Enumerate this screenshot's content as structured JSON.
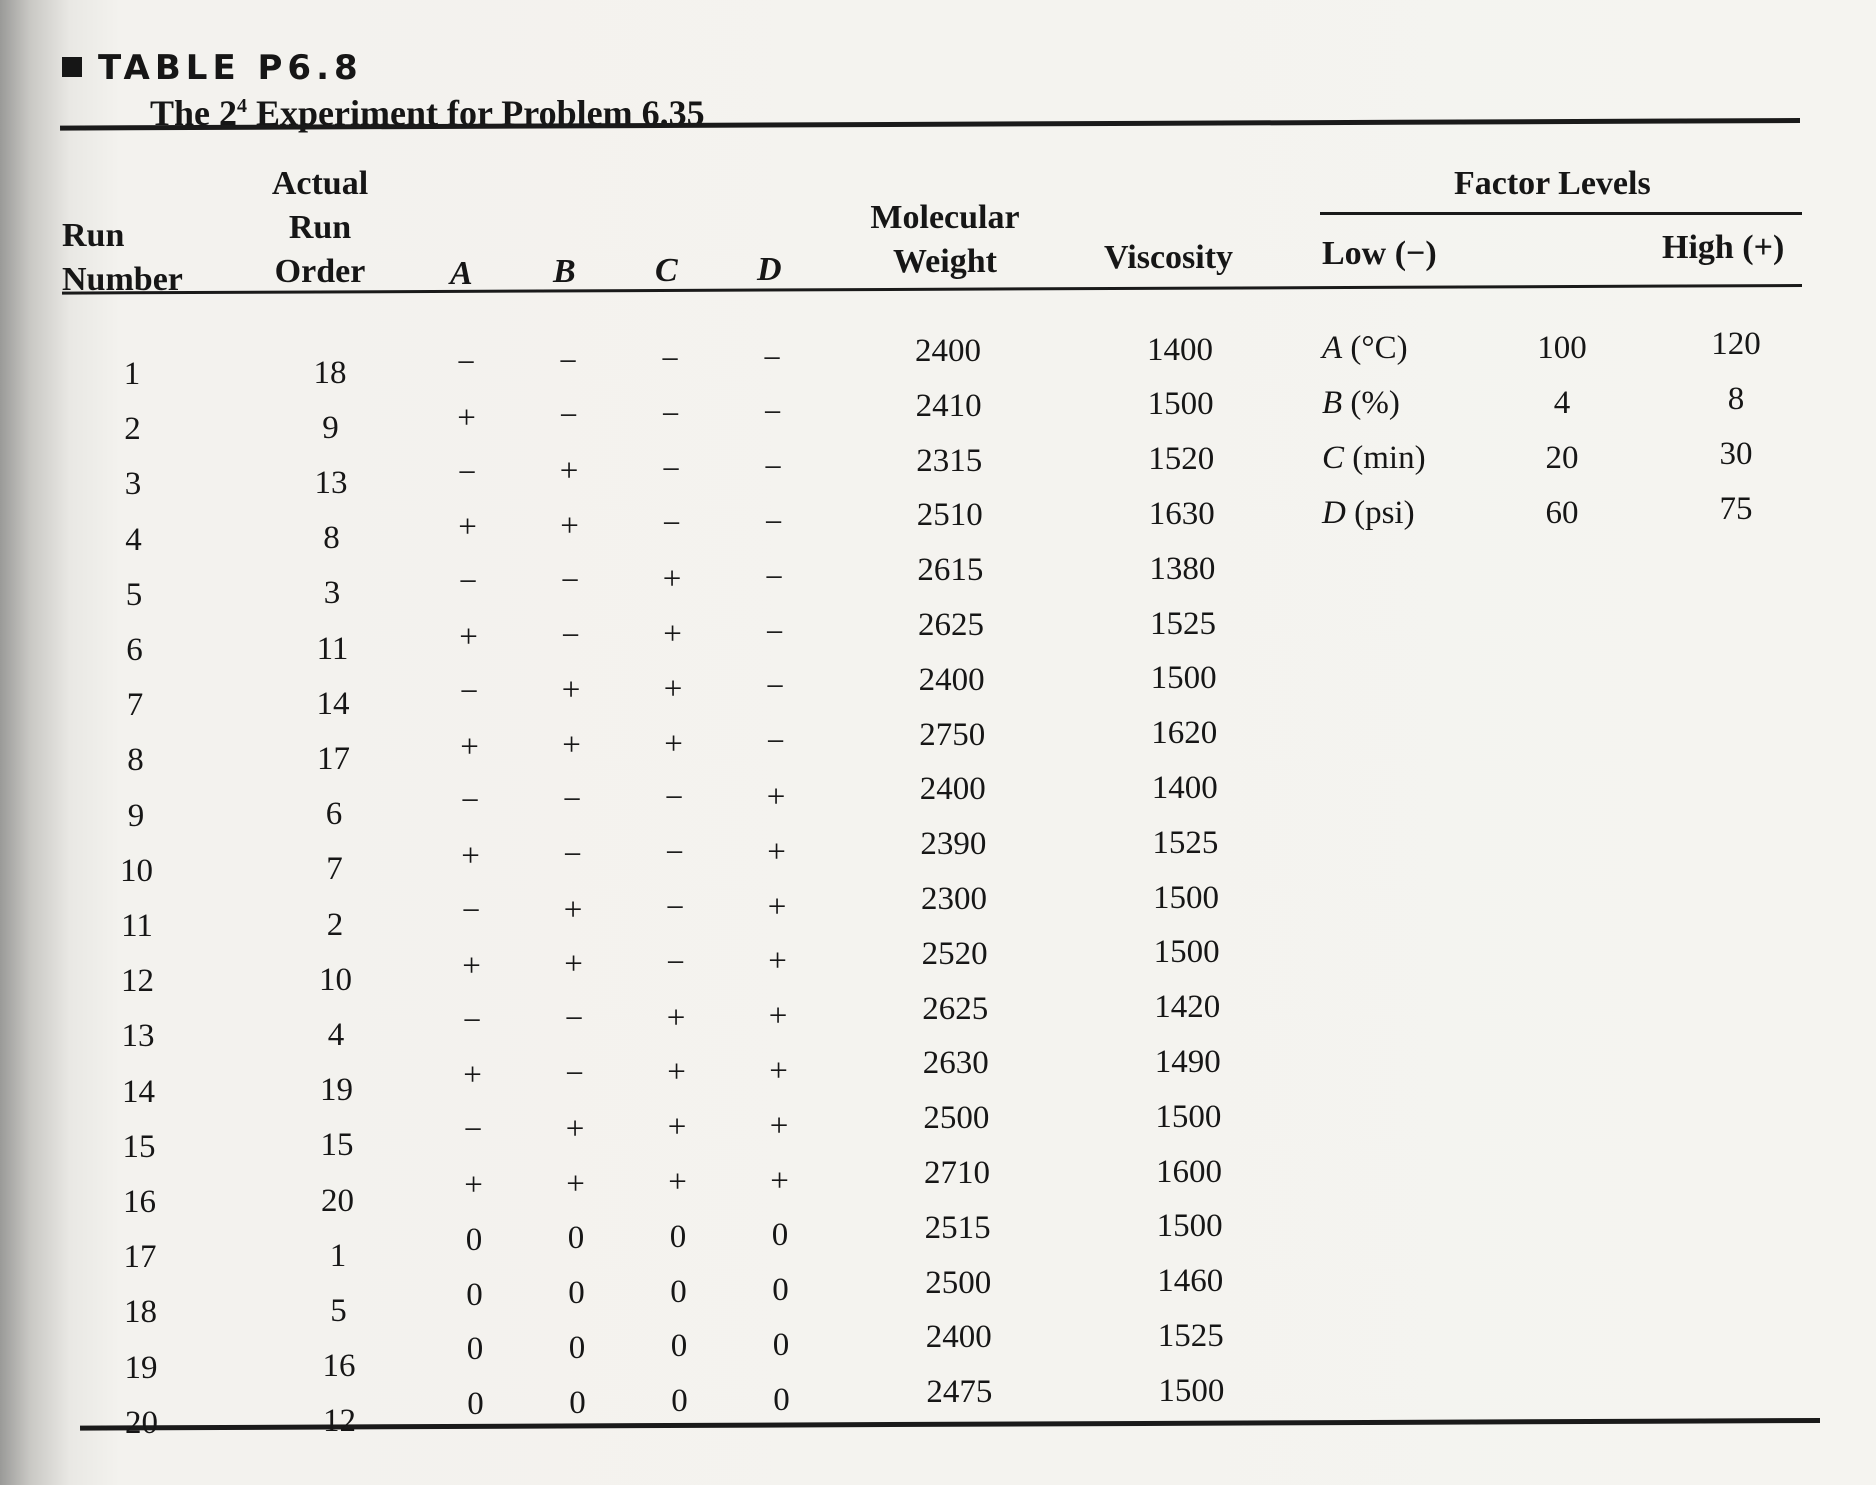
{
  "table_label": "TABLE P6.8",
  "title": {
    "prefix": "The 2",
    "superscript": "4",
    "suffix": " Experiment for Problem 6.35"
  },
  "headers": {
    "run_number": [
      "Run",
      "Number"
    ],
    "actual_run_order": [
      "Actual",
      "Run",
      "Order"
    ],
    "factors": [
      "A",
      "B",
      "C",
      "D"
    ],
    "molecular_weight": [
      "Molecular",
      "Weight"
    ],
    "viscosity": "Viscosity",
    "factor_levels": "Factor Levels",
    "low": "Low (−)",
    "high": "High (+)"
  },
  "rows": [
    {
      "run": "1",
      "order": "18",
      "A": "−",
      "B": "−",
      "C": "−",
      "D": "−",
      "mw": "2400",
      "visc": "1400"
    },
    {
      "run": "2",
      "order": "9",
      "A": "+",
      "B": "−",
      "C": "−",
      "D": "−",
      "mw": "2410",
      "visc": "1500"
    },
    {
      "run": "3",
      "order": "13",
      "A": "−",
      "B": "+",
      "C": "−",
      "D": "−",
      "mw": "2315",
      "visc": "1520"
    },
    {
      "run": "4",
      "order": "8",
      "A": "+",
      "B": "+",
      "C": "−",
      "D": "−",
      "mw": "2510",
      "visc": "1630"
    },
    {
      "run": "5",
      "order": "3",
      "A": "−",
      "B": "−",
      "C": "+",
      "D": "−",
      "mw": "2615",
      "visc": "1380"
    },
    {
      "run": "6",
      "order": "11",
      "A": "+",
      "B": "−",
      "C": "+",
      "D": "−",
      "mw": "2625",
      "visc": "1525"
    },
    {
      "run": "7",
      "order": "14",
      "A": "−",
      "B": "+",
      "C": "+",
      "D": "−",
      "mw": "2400",
      "visc": "1500"
    },
    {
      "run": "8",
      "order": "17",
      "A": "+",
      "B": "+",
      "C": "+",
      "D": "−",
      "mw": "2750",
      "visc": "1620"
    },
    {
      "run": "9",
      "order": "6",
      "A": "−",
      "B": "−",
      "C": "−",
      "D": "+",
      "mw": "2400",
      "visc": "1400"
    },
    {
      "run": "10",
      "order": "7",
      "A": "+",
      "B": "−",
      "C": "−",
      "D": "+",
      "mw": "2390",
      "visc": "1525"
    },
    {
      "run": "11",
      "order": "2",
      "A": "−",
      "B": "+",
      "C": "−",
      "D": "+",
      "mw": "2300",
      "visc": "1500"
    },
    {
      "run": "12",
      "order": "10",
      "A": "+",
      "B": "+",
      "C": "−",
      "D": "+",
      "mw": "2520",
      "visc": "1500"
    },
    {
      "run": "13",
      "order": "4",
      "A": "−",
      "B": "−",
      "C": "+",
      "D": "+",
      "mw": "2625",
      "visc": "1420"
    },
    {
      "run": "14",
      "order": "19",
      "A": "+",
      "B": "−",
      "C": "+",
      "D": "+",
      "mw": "2630",
      "visc": "1490"
    },
    {
      "run": "15",
      "order": "15",
      "A": "−",
      "B": "+",
      "C": "+",
      "D": "+",
      "mw": "2500",
      "visc": "1500"
    },
    {
      "run": "16",
      "order": "20",
      "A": "+",
      "B": "+",
      "C": "+",
      "D": "+",
      "mw": "2710",
      "visc": "1600"
    },
    {
      "run": "17",
      "order": "1",
      "A": "0",
      "B": "0",
      "C": "0",
      "D": "0",
      "mw": "2515",
      "visc": "1500"
    },
    {
      "run": "18",
      "order": "5",
      "A": "0",
      "B": "0",
      "C": "0",
      "D": "0",
      "mw": "2500",
      "visc": "1460"
    },
    {
      "run": "19",
      "order": "16",
      "A": "0",
      "B": "0",
      "C": "0",
      "D": "0",
      "mw": "2400",
      "visc": "1525"
    },
    {
      "run": "20",
      "order": "12",
      "A": "0",
      "B": "0",
      "C": "0",
      "D": "0",
      "mw": "2475",
      "visc": "1500"
    }
  ],
  "factor_levels": [
    {
      "factor": "A",
      "unit": " (°C)",
      "low": "100",
      "high": "120"
    },
    {
      "factor": "B",
      "unit": " (%)",
      "low": "4",
      "high": "8"
    },
    {
      "factor": "C",
      "unit": " (min)",
      "low": "20",
      "high": "30"
    },
    {
      "factor": "D",
      "unit": " (psi)",
      "low": "60",
      "high": "75"
    }
  ]
}
